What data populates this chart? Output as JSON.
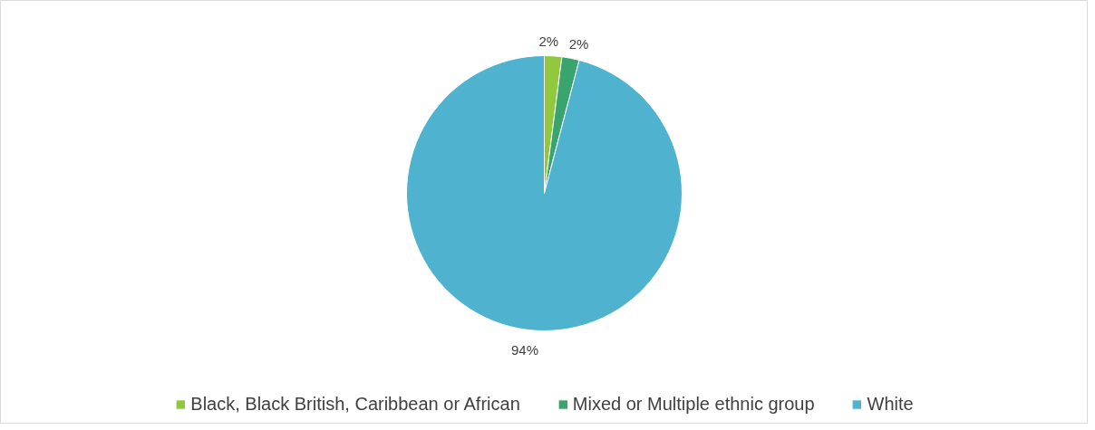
{
  "chart_data": {
    "type": "pie",
    "categories": [
      "Black, Black British, Caribbean or African",
      "Mixed or Multiple ethnic group",
      "White"
    ],
    "values": [
      2,
      2,
      94
    ],
    "colors": [
      "#92c83e",
      "#3aa46f",
      "#4fb3d0"
    ],
    "value_labels": [
      "2%",
      "2%",
      "94%"
    ],
    "legend": "bottom"
  }
}
